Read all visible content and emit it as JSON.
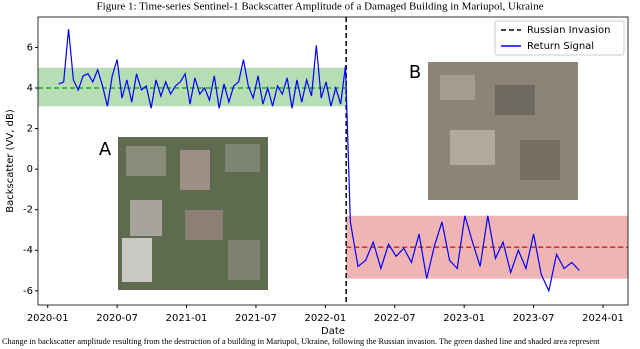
{
  "chart_data": {
    "type": "line",
    "title": "Figure 1: Time-series Sentinel-1 Backscatter Amplitude of a Damaged Building in Mariupol, Ukraine",
    "caption": "Change in backscatter amplitude resulting from the destruction of a building in Mariupol, Ukraine, following the Russian invasion. The green dashed line and shaded area represent",
    "xlabel": "Date",
    "ylabel": "Backscatter (VV, dB)",
    "x": [
      2020.08,
      2020.115,
      2020.15,
      2020.185,
      2020.22,
      2020.255,
      2020.29,
      2020.325,
      2020.36,
      2020.395,
      2020.43,
      2020.465,
      2020.5,
      2020.535,
      2020.57,
      2020.605,
      2020.64,
      2020.675,
      2020.71,
      2020.745,
      2020.78,
      2020.815,
      2020.85,
      2020.885,
      2020.92,
      2020.955,
      2020.99,
      2021.025,
      2021.06,
      2021.095,
      2021.13,
      2021.165,
      2021.2,
      2021.235,
      2021.27,
      2021.305,
      2021.34,
      2021.375,
      2021.41,
      2021.445,
      2021.48,
      2021.515,
      2021.55,
      2021.585,
      2021.62,
      2021.655,
      2021.69,
      2021.725,
      2021.76,
      2021.795,
      2021.83,
      2021.865,
      2021.9,
      2021.935,
      2021.97,
      2022.005,
      2022.04,
      2022.075,
      2022.11,
      2022.145,
      2022.18,
      2022.235,
      2022.29,
      2022.345,
      2022.4,
      2022.455,
      2022.51,
      2022.565,
      2022.62,
      2022.675,
      2022.73,
      2022.785,
      2022.84,
      2022.895,
      2022.95,
      2023.005,
      2023.06,
      2023.115,
      2023.17,
      2023.225,
      2023.28,
      2023.335,
      2023.39,
      2023.445,
      2023.5,
      2023.555,
      2023.61,
      2023.665,
      2023.72,
      2023.775,
      2023.83
    ],
    "series": [
      {
        "name": "Return Signal",
        "color": "#0000ff",
        "values": [
          4.2,
          4.3,
          6.9,
          4.4,
          3.9,
          4.6,
          4.7,
          4.3,
          4.9,
          4.1,
          3.1,
          4.6,
          5.4,
          3.5,
          4.4,
          3.3,
          4.7,
          3.9,
          4.1,
          3.0,
          4.4,
          3.6,
          4.3,
          3.7,
          4.1,
          4.3,
          4.7,
          3.2,
          4.5,
          3.7,
          4.0,
          3.4,
          4.6,
          3.0,
          4.2,
          3.3,
          4.1,
          4.3,
          5.4,
          4.1,
          3.5,
          4.6,
          3.2,
          4.0,
          3.1,
          4.1,
          3.7,
          4.5,
          3.0,
          4.4,
          3.3,
          4.4,
          3.6,
          6.1,
          3.5,
          4.3,
          3.1,
          4.0,
          3.2,
          5.1,
          -2.6,
          -4.8,
          -4.5,
          -3.6,
          -4.9,
          -3.7,
          -4.3,
          -3.9,
          -4.6,
          -3.2,
          -5.4,
          -3.8,
          -2.6,
          -4.5,
          -4.9,
          -2.3,
          -3.6,
          -4.8,
          -2.3,
          -4.4,
          -3.6,
          -5.1,
          -4.0,
          -4.9,
          -3.2,
          -5.2,
          -6.0,
          -4.2,
          -4.9,
          -4.6,
          -5.0
        ]
      }
    ],
    "invasion": {
      "name": "Russian Invasion",
      "x": 2022.15,
      "color": "#000000"
    },
    "bands": [
      {
        "mean": 4.0,
        "low": 3.1,
        "high": 5.0,
        "color": "#2ca02c"
      },
      {
        "mean": -3.85,
        "low": -5.4,
        "high": -2.3,
        "color": "#d62728"
      }
    ],
    "image_labels": [
      "A",
      "B"
    ],
    "xlim": [
      2019.93,
      2024.18
    ],
    "ylim": [
      -6.7,
      7.5
    ],
    "xticks": [
      {
        "value": 2020.0,
        "label": "2020-01"
      },
      {
        "value": 2020.5,
        "label": "2020-07"
      },
      {
        "value": 2021.0,
        "label": "2021-01"
      },
      {
        "value": 2021.5,
        "label": "2021-07"
      },
      {
        "value": 2022.0,
        "label": "2022-01"
      },
      {
        "value": 2022.5,
        "label": "2022-07"
      },
      {
        "value": 2023.0,
        "label": "2023-01"
      },
      {
        "value": 2023.5,
        "label": "2023-07"
      },
      {
        "value": 2024.0,
        "label": "2024-01"
      }
    ],
    "yticks": [
      -6,
      -4,
      -2,
      0,
      2,
      4,
      6
    ],
    "legend": "upper right"
  }
}
